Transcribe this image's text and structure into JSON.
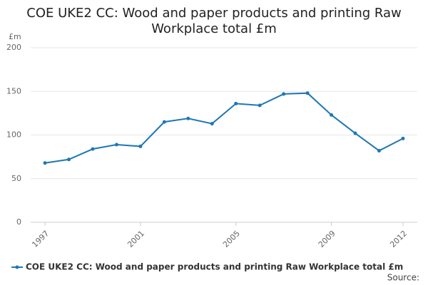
{
  "chart_data": {
    "type": "line",
    "title": "COE UKE2 CC: Wood and paper products and printing Raw Workplace total £m",
    "y_label": "£m",
    "source": "Source:",
    "x": [
      1997,
      1998,
      1999,
      2000,
      2001,
      2002,
      2003,
      2004,
      2005,
      2006,
      2007,
      2008,
      2009,
      2010,
      2011,
      2012
    ],
    "series": [
      {
        "name": "COE UKE2 CC: Wood and paper products and printing Raw Workplace total £m",
        "color": "#1f77b4",
        "values": [
          68,
          72,
          84,
          89,
          87,
          115,
          119,
          113,
          136,
          134,
          147,
          148,
          123,
          102,
          82,
          96
        ]
      }
    ],
    "xlim": [
      1996.4,
      2012.6
    ],
    "xticks": [
      1997,
      2001,
      2005,
      2009,
      2012
    ],
    "ylim": [
      0,
      200
    ],
    "yticks": [
      0,
      50,
      100,
      150,
      200
    ],
    "grid": true
  }
}
